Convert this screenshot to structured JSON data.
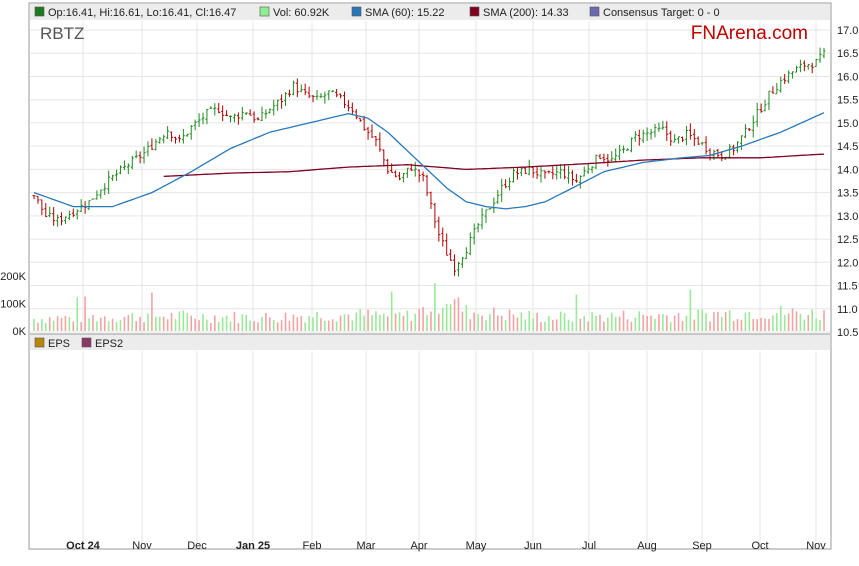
{
  "chart_data": [
    {
      "type": "candlestick",
      "ticker": "RBTZ",
      "brand": "FNArena.com",
      "legend": [
        {
          "label": "Op:16.41, Hi:16.61, Lo:16.41, Cl:16.47",
          "color": "#1f7a1f"
        },
        {
          "label": "Vol: 60.92K",
          "color": "#90ee90"
        },
        {
          "label": "SMA (60): 15.22",
          "color": "#2878b8"
        },
        {
          "label": "SMA (200): 14.33",
          "color": "#800020"
        },
        {
          "label": "Consensus Target: 0 - 0",
          "color": "#6a6ab0"
        }
      ],
      "price_axis": {
        "ylim": [
          10.5,
          17.0
        ],
        "ticks": [
          "17.0",
          "16.5",
          "16.0",
          "15.5",
          "15.0",
          "14.5",
          "14.0",
          "13.5",
          "13.0",
          "12.5",
          "12.0",
          "11.5",
          "11.0",
          "10.5"
        ]
      },
      "volume_axis": {
        "ticks": [
          "200K",
          "100K",
          "0K"
        ]
      },
      "x_labels": [
        "Oct 24",
        "Nov",
        "Dec",
        "Jan 25",
        "Feb",
        "Mar",
        "Apr",
        "May",
        "Jun",
        "Jul",
        "Aug",
        "Sep",
        "Oct",
        "Nov"
      ],
      "close_path": [
        [
          0,
          13.45
        ],
        [
          3,
          13.0
        ],
        [
          6,
          12.9
        ],
        [
          10,
          13.1
        ],
        [
          14,
          13.3
        ],
        [
          17,
          13.6
        ],
        [
          21,
          13.9
        ],
        [
          24,
          14.1
        ],
        [
          28,
          14.35
        ],
        [
          31,
          14.6
        ],
        [
          34,
          14.85
        ],
        [
          37,
          14.6
        ],
        [
          40,
          14.9
        ],
        [
          44,
          15.2
        ],
        [
          47,
          15.3
        ],
        [
          50,
          15.1
        ],
        [
          54,
          15.25
        ],
        [
          57,
          15.05
        ],
        [
          60,
          15.3
        ],
        [
          63,
          15.5
        ],
        [
          66,
          15.8
        ],
        [
          69,
          15.6
        ],
        [
          72,
          15.5
        ],
        [
          75,
          15.65
        ],
        [
          78,
          15.5
        ],
        [
          81,
          15.3
        ],
        [
          84,
          14.9
        ],
        [
          87,
          14.6
        ],
        [
          90,
          14.0
        ],
        [
          93,
          13.8
        ],
        [
          96,
          14.05
        ],
        [
          99,
          13.8
        ],
        [
          101,
          13.2
        ],
        [
          103,
          12.6
        ],
        [
          105,
          12.2
        ],
        [
          107,
          11.9
        ],
        [
          110,
          12.3
        ],
        [
          113,
          12.8
        ],
        [
          116,
          13.2
        ],
        [
          119,
          13.6
        ],
        [
          122,
          13.9
        ],
        [
          126,
          14.0
        ],
        [
          130,
          13.85
        ],
        [
          134,
          13.95
        ],
        [
          138,
          13.75
        ],
        [
          141,
          14.05
        ],
        [
          144,
          14.3
        ],
        [
          147,
          14.2
        ],
        [
          150,
          14.4
        ],
        [
          153,
          14.7
        ],
        [
          157,
          14.8
        ],
        [
          160,
          14.85
        ],
        [
          163,
          14.6
        ],
        [
          166,
          14.75
        ],
        [
          169,
          14.6
        ],
        [
          172,
          14.4
        ],
        [
          175,
          14.3
        ],
        [
          178,
          14.45
        ],
        [
          181,
          14.8
        ],
        [
          184,
          15.2
        ],
        [
          187,
          15.6
        ],
        [
          190,
          15.9
        ],
        [
          193,
          16.1
        ],
        [
          196,
          16.25
        ],
        [
          199,
          16.3
        ],
        [
          201,
          16.47
        ]
      ],
      "sma60": [
        [
          0,
          13.5
        ],
        [
          10,
          13.2
        ],
        [
          20,
          13.2
        ],
        [
          30,
          13.5
        ],
        [
          40,
          13.95
        ],
        [
          50,
          14.45
        ],
        [
          60,
          14.8
        ],
        [
          70,
          15.0
        ],
        [
          80,
          15.2
        ],
        [
          85,
          15.1
        ],
        [
          90,
          14.8
        ],
        [
          95,
          14.4
        ],
        [
          100,
          14.0
        ],
        [
          105,
          13.6
        ],
        [
          110,
          13.3
        ],
        [
          115,
          13.2
        ],
        [
          120,
          13.15
        ],
        [
          125,
          13.2
        ],
        [
          130,
          13.3
        ],
        [
          137,
          13.6
        ],
        [
          145,
          13.95
        ],
        [
          155,
          14.15
        ],
        [
          165,
          14.25
        ],
        [
          172,
          14.3
        ],
        [
          180,
          14.5
        ],
        [
          190,
          14.8
        ],
        [
          201,
          15.22
        ]
      ],
      "sma200": [
        [
          33,
          13.85
        ],
        [
          50,
          13.92
        ],
        [
          65,
          13.95
        ],
        [
          80,
          14.05
        ],
        [
          95,
          14.1
        ],
        [
          110,
          14.0
        ],
        [
          125,
          14.05
        ],
        [
          140,
          14.12
        ],
        [
          155,
          14.2
        ],
        [
          170,
          14.25
        ],
        [
          185,
          14.25
        ],
        [
          201,
          14.33
        ]
      ],
      "volume_profile": [
        [
          0,
          45
        ],
        [
          30,
          55
        ],
        [
          60,
          50
        ],
        [
          75,
          60
        ],
        [
          95,
          55
        ],
        [
          101,
          85
        ],
        [
          105,
          130
        ],
        [
          110,
          70
        ],
        [
          130,
          50
        ],
        [
          150,
          55
        ],
        [
          170,
          60
        ],
        [
          185,
          70
        ],
        [
          201,
          60.92
        ]
      ],
      "lower_panel": {
        "legend": [
          {
            "label": "EPS",
            "color": "#b8860b"
          },
          {
            "label": "EPS2",
            "color": "#8b3a62"
          }
        ]
      }
    }
  ]
}
